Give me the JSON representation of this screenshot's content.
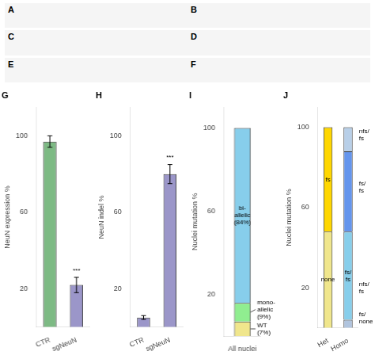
{
  "chart_data": [
    {
      "type": "placeholder",
      "annotations": [
        "A",
        "B"
      ]
    },
    {
      "type": "placeholder",
      "annotations": [
        "C",
        "D"
      ]
    },
    {
      "type": "placeholder",
      "annotations": [
        "E",
        "F"
      ]
    },
    {
      "type": "bar",
      "title": "G",
      "categories": [
        "CTR",
        "sgNeuN"
      ],
      "values": [
        97,
        22
      ],
      "errors": [
        3,
        4
      ],
      "colors": [
        "#7dba84",
        "#9b96c9"
      ],
      "ylabel": "NeuN expression %",
      "ylim": [
        0,
        115
      ],
      "yticks": [
        20,
        60,
        100
      ],
      "grid": false,
      "annotations": [
        {
          "text": "***",
          "x": "sgNeuN"
        }
      ]
    },
    {
      "type": "bar",
      "title": "H",
      "categories": [
        "CTR",
        "sgNeuN"
      ],
      "values": [
        5,
        80
      ],
      "errors": [
        1,
        5
      ],
      "colors": [
        "#9b96c9",
        "#9b96c9"
      ],
      "ylabel": "NeuN indel %",
      "ylim": [
        0,
        115
      ],
      "yticks": [
        20,
        60,
        100
      ],
      "grid": false,
      "annotations": [
        {
          "text": "***",
          "x": "sgNeuN"
        }
      ]
    },
    {
      "type": "bar",
      "title": "I",
      "categories": [
        "All nuclei"
      ],
      "stacked": true,
      "series": [
        {
          "name": "WT\n(7%)",
          "color": "#f0e68c",
          "values": [
            7
          ]
        },
        {
          "name": "mono-\nallelic\n(9%)",
          "color": "#90ee90",
          "values": [
            9
          ]
        },
        {
          "name": "bi-\nallelic\n(84%)",
          "color": "#87ceeb",
          "values": [
            84
          ]
        }
      ],
      "ylabel": "Nuclei mutation %",
      "ylim": [
        0,
        110
      ],
      "yticks": [
        20,
        60,
        100
      ],
      "grid": false
    },
    {
      "type": "bar",
      "title": "J",
      "categories": [
        "Het",
        "Homo"
      ],
      "stacked": true,
      "series": [
        {
          "name": "none",
          "color": "#f0e68c",
          "values": [
            48,
            null
          ]
        },
        {
          "name": "fs",
          "color": "#ffd700",
          "values": [
            52,
            null
          ]
        },
        {
          "color": "#b0c4de",
          "values": [
            null,
            4
          ]
        },
        {
          "name": "fs/\nfs",
          "color": "#87ceeb",
          "values": [
            null,
            44
          ]
        },
        {
          "color": "#6495ed",
          "values": [
            null,
            40
          ]
        },
        {
          "color": "#b8cfe8",
          "values": [
            null,
            12
          ]
        }
      ],
      "ylabel": "Nuclei mutation %",
      "ylim": [
        0,
        110
      ],
      "yticks": [
        20,
        60,
        100
      ],
      "grid": false,
      "annotations": [
        {
          "text": "nfs/\nfs",
          "x": "Homo",
          "y": 96
        },
        {
          "text": "fs/\nfs",
          "x": "Homo",
          "y": 70
        },
        {
          "text": "nfs/\nfs",
          "x": "Homo",
          "y": 20
        },
        {
          "text": "fs/\nnone",
          "x": "Homo",
          "y": 5
        }
      ]
    }
  ]
}
